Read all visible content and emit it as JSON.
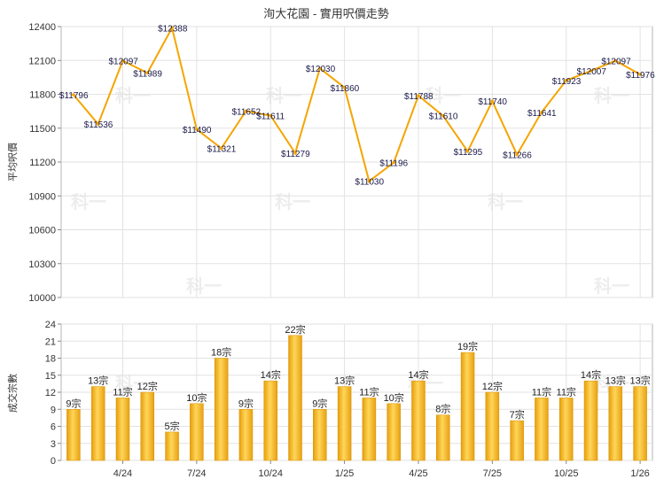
{
  "chart_data": [
    {
      "type": "line",
      "title": "洵大花園 - 實用呎價走勢",
      "ylabel": "平均呎價",
      "ylim": [
        10000,
        12400
      ],
      "yticks": [
        10000,
        10300,
        10600,
        10900,
        11200,
        11500,
        11800,
        12100,
        12400
      ],
      "grid": true,
      "color": "#f5a500",
      "values": [
        11796,
        11536,
        12097,
        11989,
        12388,
        11490,
        11321,
        11652,
        11611,
        11279,
        12030,
        11860,
        11030,
        11196,
        11788,
        11610,
        11295,
        11740,
        11266,
        11641,
        11923,
        12007,
        12097,
        11976
      ]
    },
    {
      "type": "bar",
      "ylabel": "成交宗數",
      "ylim": [
        0,
        24
      ],
      "yticks": [
        0,
        3,
        6,
        9,
        12,
        15,
        18,
        21,
        24
      ],
      "grid": true,
      "color": "#f2b21d",
      "unit": "宗",
      "values": [
        9,
        13,
        11,
        12,
        5,
        10,
        18,
        9,
        14,
        22,
        9,
        13,
        11,
        10,
        14,
        8,
        19,
        12,
        7,
        11,
        11,
        14,
        13,
        13
      ]
    }
  ],
  "x_tick_labels": [
    "4/24",
    "7/24",
    "10/24",
    "1/25",
    "4/25",
    "7/25",
    "10/25",
    "1/26"
  ],
  "watermark": "科一"
}
